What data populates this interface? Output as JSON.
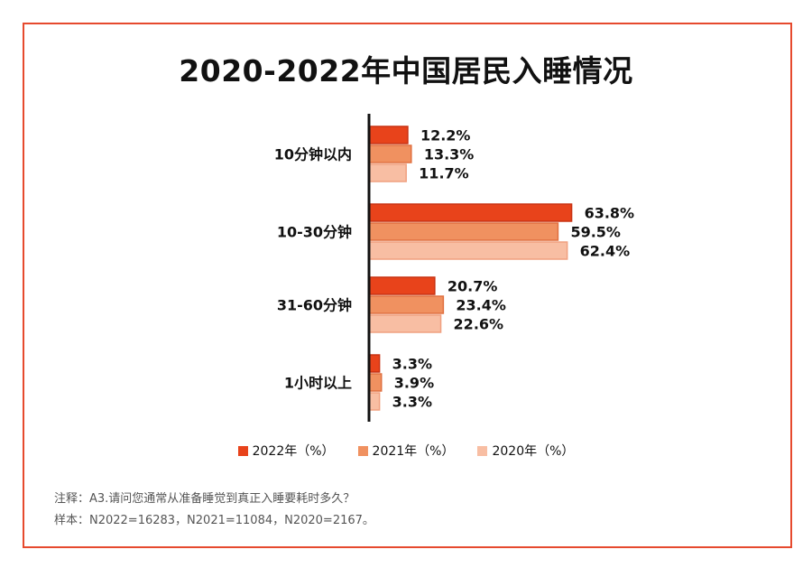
{
  "chart_data": {
    "type": "bar",
    "orientation": "horizontal",
    "title": "2020-2022年中国居民入睡情况",
    "categories": [
      "10分钟以内",
      "10-30分钟",
      "31-60分钟",
      "1小时以上"
    ],
    "series": [
      {
        "name": "2022年（%）",
        "color": "#e8431b",
        "border": "#c93212",
        "values": [
          12.2,
          63.8,
          20.7,
          3.3
        ],
        "labels": [
          "12.2%",
          "63.8%",
          "20.7%",
          "3.3%"
        ]
      },
      {
        "name": "2021年（%）",
        "color": "#f09160",
        "border": "#e07040",
        "values": [
          13.3,
          59.5,
          23.4,
          3.9
        ],
        "labels": [
          "13.3%",
          "59.5%",
          "23.4%",
          "3.9%"
        ]
      },
      {
        "name": "2020年（%）",
        "color": "#f8bea3",
        "border": "#f0a080",
        "values": [
          11.7,
          62.4,
          22.6,
          3.3
        ],
        "labels": [
          "11.7%",
          "62.4%",
          "22.6%",
          "3.3%"
        ]
      }
    ],
    "xlim": [
      0,
      70
    ],
    "grid": false,
    "legend_position": "bottom"
  },
  "notes": {
    "line1": "注释：A3.请问您通常从准备睡觉到真正入睡要耗时多久？",
    "line2": "样本：N2022=16283，N2021=11084，N2020=2167。"
  },
  "colors": {
    "frame": "#e64a2e",
    "axis": "#111111"
  }
}
